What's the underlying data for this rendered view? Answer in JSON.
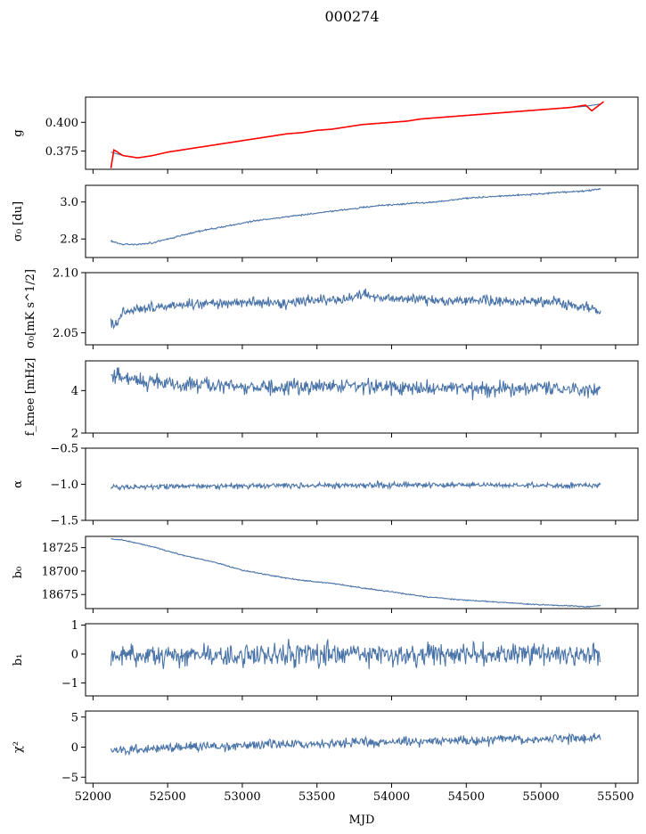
{
  "figure": {
    "title": "000274"
  },
  "chart_data": [
    {
      "type": "line",
      "ylabel": "g",
      "ylim": [
        0.359,
        0.422
      ],
      "yticks": [
        {
          "v": 0.375,
          "label": "0.375"
        },
        {
          "v": 0.4,
          "label": "0.400"
        }
      ],
      "xlim": [
        51950,
        55650
      ],
      "xticks": [],
      "series": [
        {
          "color": "#4a74a8",
          "x": [
            52120,
            52200,
            52300,
            52400,
            52500,
            52600,
            52700,
            52800,
            52900,
            53000,
            53100,
            53200,
            53300,
            53400,
            53500,
            53600,
            53700,
            53800,
            53900,
            54000,
            54100,
            54200,
            54300,
            54400,
            54500,
            54600,
            54700,
            54800,
            54900,
            55000,
            55100,
            55200,
            55300,
            55400
          ],
          "y": [
            0.374,
            0.371,
            0.369,
            0.371,
            0.374,
            0.376,
            0.378,
            0.38,
            0.382,
            0.384,
            0.386,
            0.388,
            0.39,
            0.391,
            0.393,
            0.394,
            0.396,
            0.398,
            0.399,
            0.4,
            0.401,
            0.403,
            0.404,
            0.405,
            0.406,
            0.407,
            0.408,
            0.409,
            0.41,
            0.411,
            0.412,
            0.413,
            0.414,
            0.416
          ]
        },
        {
          "color": "#ff0000",
          "x": [
            52120,
            52140,
            52200,
            52300,
            52400,
            52500,
            52600,
            52700,
            52800,
            52900,
            53000,
            53100,
            53200,
            53300,
            53400,
            53500,
            53600,
            53700,
            53800,
            53900,
            54000,
            54100,
            54200,
            54300,
            54400,
            54500,
            54600,
            54700,
            54800,
            54900,
            55000,
            55100,
            55200,
            55300,
            55340,
            55420
          ],
          "y": [
            0.36,
            0.376,
            0.371,
            0.369,
            0.371,
            0.374,
            0.376,
            0.378,
            0.38,
            0.382,
            0.384,
            0.386,
            0.388,
            0.39,
            0.391,
            0.393,
            0.394,
            0.396,
            0.398,
            0.399,
            0.4,
            0.401,
            0.403,
            0.404,
            0.405,
            0.406,
            0.407,
            0.408,
            0.409,
            0.41,
            0.411,
            0.412,
            0.413,
            0.415,
            0.41,
            0.418
          ]
        }
      ]
    },
    {
      "type": "line",
      "ylabel": "σ₀ [du]",
      "ylim": [
        2.7,
        3.09
      ],
      "yticks": [
        {
          "v": 2.8,
          "label": "2.8"
        },
        {
          "v": 3.0,
          "label": "3.0"
        }
      ],
      "xlim": [
        51950,
        55650
      ],
      "xticks": [],
      "series": [
        {
          "color": "#4a74a8",
          "noise": 0.004,
          "x": [
            52120,
            52200,
            52300,
            52400,
            52500,
            52700,
            52900,
            53100,
            53300,
            53500,
            53700,
            53900,
            54100,
            54300,
            54500,
            54700,
            54900,
            55100,
            55300,
            55400
          ],
          "y": [
            2.79,
            2.77,
            2.77,
            2.78,
            2.8,
            2.84,
            2.87,
            2.9,
            2.92,
            2.94,
            2.96,
            2.98,
            2.99,
            3.0,
            3.02,
            3.03,
            3.04,
            3.05,
            3.06,
            3.07
          ]
        }
      ]
    },
    {
      "type": "line",
      "ylabel": "σ₀[mK s^1/2]",
      "ylim": [
        2.04,
        2.1
      ],
      "yticks": [
        {
          "v": 2.05,
          "label": "2.05"
        },
        {
          "v": 2.1,
          "label": "2.10"
        }
      ],
      "xlim": [
        51950,
        55650
      ],
      "xticks": [],
      "series": [
        {
          "color": "#4a74a8",
          "noise": 0.004,
          "x": [
            52120,
            52150,
            52200,
            52300,
            52500,
            52700,
            52900,
            53100,
            53300,
            53500,
            53700,
            53800,
            54000,
            54200,
            54400,
            54600,
            54800,
            55000,
            55200,
            55350,
            55400
          ],
          "y": [
            2.062,
            2.055,
            2.068,
            2.07,
            2.072,
            2.074,
            2.074,
            2.076,
            2.075,
            2.078,
            2.078,
            2.082,
            2.078,
            2.078,
            2.076,
            2.078,
            2.075,
            2.077,
            2.074,
            2.07,
            2.066
          ]
        }
      ]
    },
    {
      "type": "line",
      "ylabel": "f_knee [mHz]",
      "ylim": [
        2.0,
        5.4
      ],
      "yticks": [
        {
          "v": 2,
          "label": "2"
        },
        {
          "v": 4,
          "label": "4"
        }
      ],
      "xlim": [
        51950,
        55650
      ],
      "xticks": [],
      "series": [
        {
          "color": "#4a74a8",
          "noise": 0.35,
          "x": [
            52120,
            52300,
            52600,
            53000,
            53400,
            53800,
            54200,
            54600,
            55000,
            55400
          ],
          "y": [
            4.7,
            4.5,
            4.3,
            4.2,
            4.2,
            4.2,
            4.1,
            4.1,
            4.1,
            4.0
          ]
        }
      ]
    },
    {
      "type": "line",
      "ylabel": "α",
      "ylim": [
        -1.5,
        -0.5
      ],
      "yticks": [
        {
          "v": -1.5,
          "label": "−1.5"
        },
        {
          "v": -1.0,
          "label": "−1.0"
        },
        {
          "v": -0.5,
          "label": "−0.5"
        }
      ],
      "xlim": [
        51950,
        55650
      ],
      "xticks": [],
      "series": [
        {
          "color": "#4a74a8",
          "noise": 0.035,
          "x": [
            52120,
            52500,
            53000,
            53500,
            54000,
            54500,
            55000,
            55400
          ],
          "y": [
            -1.04,
            -1.03,
            -1.02,
            -1.02,
            -1.01,
            -1.01,
            -1.02,
            -1.02
          ]
        }
      ]
    },
    {
      "type": "line",
      "ylabel": "b₀",
      "ylim": [
        18660,
        18737
      ],
      "yticks": [
        {
          "v": 18675,
          "label": "18675"
        },
        {
          "v": 18700,
          "label": "18700"
        },
        {
          "v": 18725,
          "label": "18725"
        }
      ],
      "xlim": [
        51950,
        55650
      ],
      "xticks": [],
      "series": [
        {
          "color": "#4a74a8",
          "noise": 0.6,
          "x": [
            52120,
            52200,
            52400,
            52600,
            52800,
            53000,
            53200,
            53400,
            53600,
            53800,
            54000,
            54200,
            54400,
            54600,
            54800,
            55000,
            55200,
            55300,
            55400
          ],
          "y": [
            18734,
            18733,
            18726,
            18717,
            18710,
            18701,
            18695,
            18690,
            18687,
            18682,
            18678,
            18673,
            18670,
            18668,
            18666,
            18664,
            18663,
            18662,
            18663
          ]
        }
      ]
    },
    {
      "type": "line",
      "ylabel": "b₁",
      "ylim": [
        -1.45,
        1.05
      ],
      "yticks": [
        {
          "v": -1,
          "label": "−1"
        },
        {
          "v": 0,
          "label": "0"
        },
        {
          "v": 1,
          "label": "1"
        }
      ],
      "xlim": [
        51950,
        55650
      ],
      "xticks": [],
      "series": [
        {
          "color": "#4a74a8",
          "noise": 0.38,
          "x": [
            52120,
            52500,
            53000,
            53500,
            54000,
            54500,
            55000,
            55400
          ],
          "y": [
            -0.05,
            -0.05,
            -0.05,
            0,
            0,
            0,
            0,
            -0.05
          ]
        }
      ]
    },
    {
      "type": "line",
      "ylabel": "χ²",
      "ylim": [
        -6,
        6
      ],
      "yticks": [
        {
          "v": -5,
          "label": "−5"
        },
        {
          "v": 0,
          "label": "0"
        },
        {
          "v": 5,
          "label": "5"
        }
      ],
      "xlim": [
        51950,
        55650
      ],
      "xlabel": "MJD",
      "xticks": [
        {
          "v": 52000,
          "label": "52000"
        },
        {
          "v": 52500,
          "label": "52500"
        },
        {
          "v": 53000,
          "label": "53000"
        },
        {
          "v": 53500,
          "label": "53500"
        },
        {
          "v": 54000,
          "label": "54000"
        },
        {
          "v": 54500,
          "label": "54500"
        },
        {
          "v": 55000,
          "label": "55000"
        },
        {
          "v": 55500,
          "label": "55500"
        }
      ],
      "series": [
        {
          "color": "#4a74a8",
          "noise": 0.75,
          "x": [
            52120,
            52500,
            53000,
            53500,
            54000,
            54500,
            55000,
            55400
          ],
          "y": [
            -0.4,
            -0.2,
            0.3,
            0.6,
            0.9,
            1.1,
            1.4,
            1.6
          ]
        }
      ]
    }
  ]
}
